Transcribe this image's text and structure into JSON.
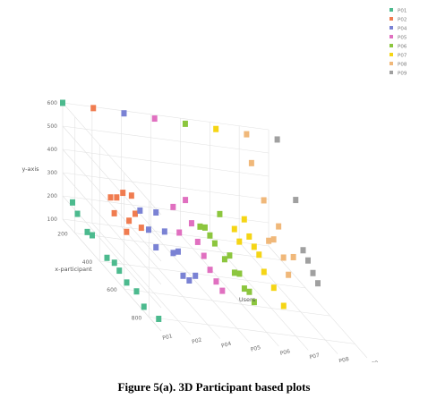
{
  "caption": "Figure 5(a). 3D Participant based plots",
  "chart_data": {
    "type": "scatter",
    "projection": "3d",
    "grid": true,
    "legend_placement": "top-right",
    "y_axis": {
      "label": "y-axis",
      "ticks": [
        "100",
        "200",
        "300",
        "400",
        "500",
        "600"
      ],
      "range": [
        100,
        600
      ]
    },
    "x_axis": {
      "label": "x-participant",
      "ticks": [
        "200",
        "400",
        "600",
        "800"
      ],
      "range": [
        100,
        900
      ]
    },
    "z_axis": {
      "label": "Users",
      "ticks": [
        "P01",
        "P02",
        "P04",
        "P05",
        "P06",
        "P07",
        "P08",
        "P09"
      ]
    },
    "series": [
      {
        "name": "P01",
        "color": "#4cba8e",
        "z": 0,
        "points": [
          [
            100,
            600
          ],
          [
            180,
            220
          ],
          [
            340,
            175
          ],
          [
            520,
            165
          ],
          [
            700,
            150
          ],
          [
            880,
            140
          ],
          [
            220,
            195
          ],
          [
            460,
            150
          ],
          [
            620,
            140
          ],
          [
            760,
            120
          ],
          [
            300,
            165
          ],
          [
            560,
            155
          ]
        ]
      },
      {
        "name": "P02",
        "color": "#f07c50",
        "z": 1,
        "points": [
          [
            110,
            600
          ],
          [
            250,
            300
          ],
          [
            300,
            330
          ],
          [
            350,
            380
          ],
          [
            400,
            290
          ],
          [
            450,
            350
          ],
          [
            500,
            320
          ],
          [
            380,
            230
          ],
          [
            280,
            250
          ],
          [
            420,
            410
          ]
        ]
      },
      {
        "name": "P04",
        "color": "#7a82d4",
        "z": 2,
        "points": [
          [
            120,
            600
          ],
          [
            250,
            260
          ],
          [
            320,
            220
          ],
          [
            380,
            330
          ],
          [
            450,
            290
          ],
          [
            520,
            240
          ],
          [
            600,
            190
          ],
          [
            650,
            200
          ],
          [
            700,
            250
          ],
          [
            380,
            180
          ],
          [
            560,
            270
          ]
        ]
      },
      {
        "name": "P05",
        "color": "#e070c0",
        "z": 3,
        "points": [
          [
            130,
            600
          ],
          [
            330,
            230
          ],
          [
            380,
            400
          ],
          [
            430,
            330
          ],
          [
            480,
            280
          ],
          [
            530,
            250
          ],
          [
            580,
            220
          ],
          [
            630,
            200
          ],
          [
            680,
            190
          ],
          [
            280,
            310
          ]
        ]
      },
      {
        "name": "P06",
        "color": "#8cc63e",
        "z": 4,
        "points": [
          [
            140,
            600
          ],
          [
            260,
            230
          ],
          [
            300,
            250
          ],
          [
            340,
            240
          ],
          [
            380,
            230
          ],
          [
            420,
            380
          ],
          [
            460,
            210
          ],
          [
            500,
            250
          ],
          [
            540,
            200
          ],
          [
            580,
            220
          ],
          [
            620,
            180
          ],
          [
            660,
            190
          ],
          [
            700,
            170
          ]
        ]
      },
      {
        "name": "P07",
        "color": "#f5d515",
        "z": 5,
        "points": [
          [
            150,
            600
          ],
          [
            300,
            260
          ],
          [
            340,
            230
          ],
          [
            380,
            350
          ],
          [
            420,
            300
          ],
          [
            460,
            280
          ],
          [
            500,
            270
          ],
          [
            540,
            220
          ],
          [
            620,
            200
          ],
          [
            700,
            170
          ]
        ]
      },
      {
        "name": "P08",
        "color": "#f0b87a",
        "z": 6,
        "points": [
          [
            160,
            600
          ],
          [
            200,
            500
          ],
          [
            300,
            400
          ],
          [
            340,
            250
          ],
          [
            380,
            280
          ],
          [
            420,
            360
          ],
          [
            460,
            250
          ],
          [
            500,
            200
          ],
          [
            540,
            300
          ]
        ]
      },
      {
        "name": "P09",
        "color": "#a0a0a0",
        "z": 7,
        "points": [
          [
            170,
            600
          ],
          [
            320,
            430
          ],
          [
            380,
            250
          ],
          [
            420,
            230
          ],
          [
            460,
            200
          ],
          [
            500,
            180
          ]
        ]
      }
    ]
  }
}
